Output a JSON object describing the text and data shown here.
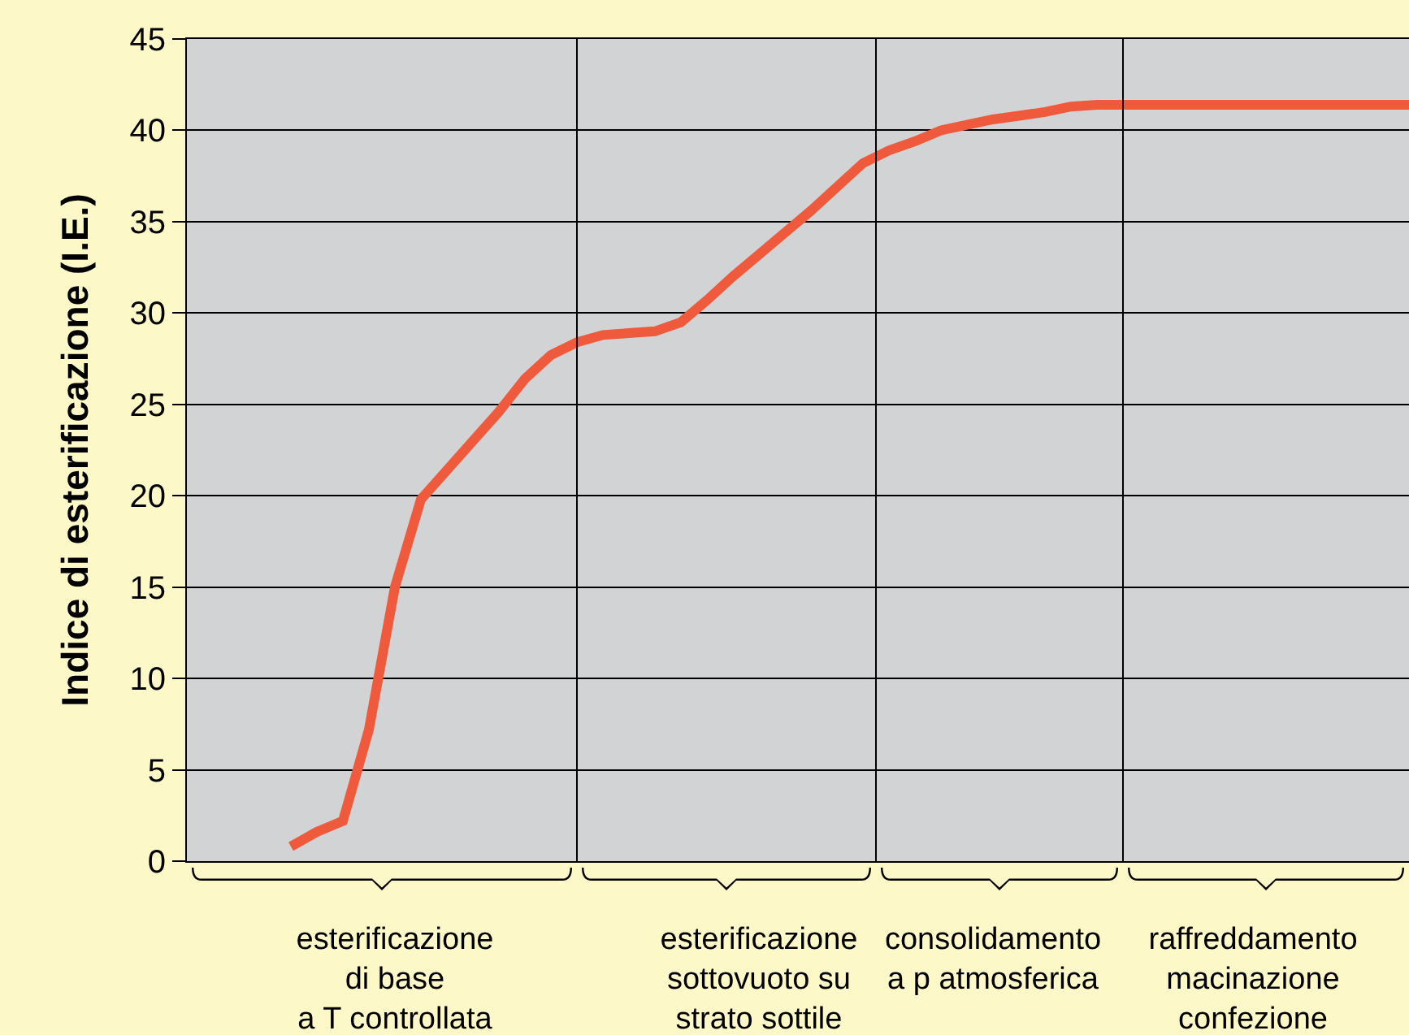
{
  "chart_data": {
    "type": "line",
    "ylabel": "Indice di esterificazione (I.E.)",
    "categories": [
      null,
      null,
      null,
      null,
      null,
      null,
      null,
      null,
      "esterificazione\ndi base\na T controllata",
      null,
      null,
      null,
      null,
      null,
      null,
      null,
      null,
      null,
      null,
      null,
      null,
      null,
      "esterificazione\nsottovuoto su\nstrato sottile",
      null,
      null,
      null,
      null,
      null,
      null,
      null,
      null,
      "consolidamento\na p atmosferica",
      null,
      null,
      null,
      null,
      null,
      null,
      null,
      null,
      null,
      "raffreddamento\nmacinazione\nconfezione",
      null,
      null,
      null,
      null,
      null,
      null
    ],
    "series": [
      {
        "color": "#f05a3c",
        "values": [
          null,
          null,
          null,
          null,
          0.8,
          1.6,
          2.2,
          7.2,
          15.0,
          19.8,
          21.4,
          23.0,
          24.6,
          26.4,
          27.7,
          28.4,
          28.8,
          28.9,
          29.0,
          29.5,
          30.7,
          32.0,
          33.2,
          34.4,
          35.6,
          36.9,
          38.2,
          38.9,
          39.4,
          40.0,
          40.3,
          40.6,
          40.8,
          41.0,
          41.3,
          41.4,
          41.4,
          41.4,
          41.4,
          41.4,
          41.4,
          41.4,
          41.4,
          41.4,
          41.4,
          41.4,
          41.4,
          41.4
        ]
      }
    ],
    "ylim": [
      0,
      45
    ],
    "yticks": [
      0,
      5,
      10,
      15,
      20,
      25,
      30,
      35,
      40,
      45
    ],
    "grid": true,
    "marker": "none",
    "line_style": "solid"
  }
}
